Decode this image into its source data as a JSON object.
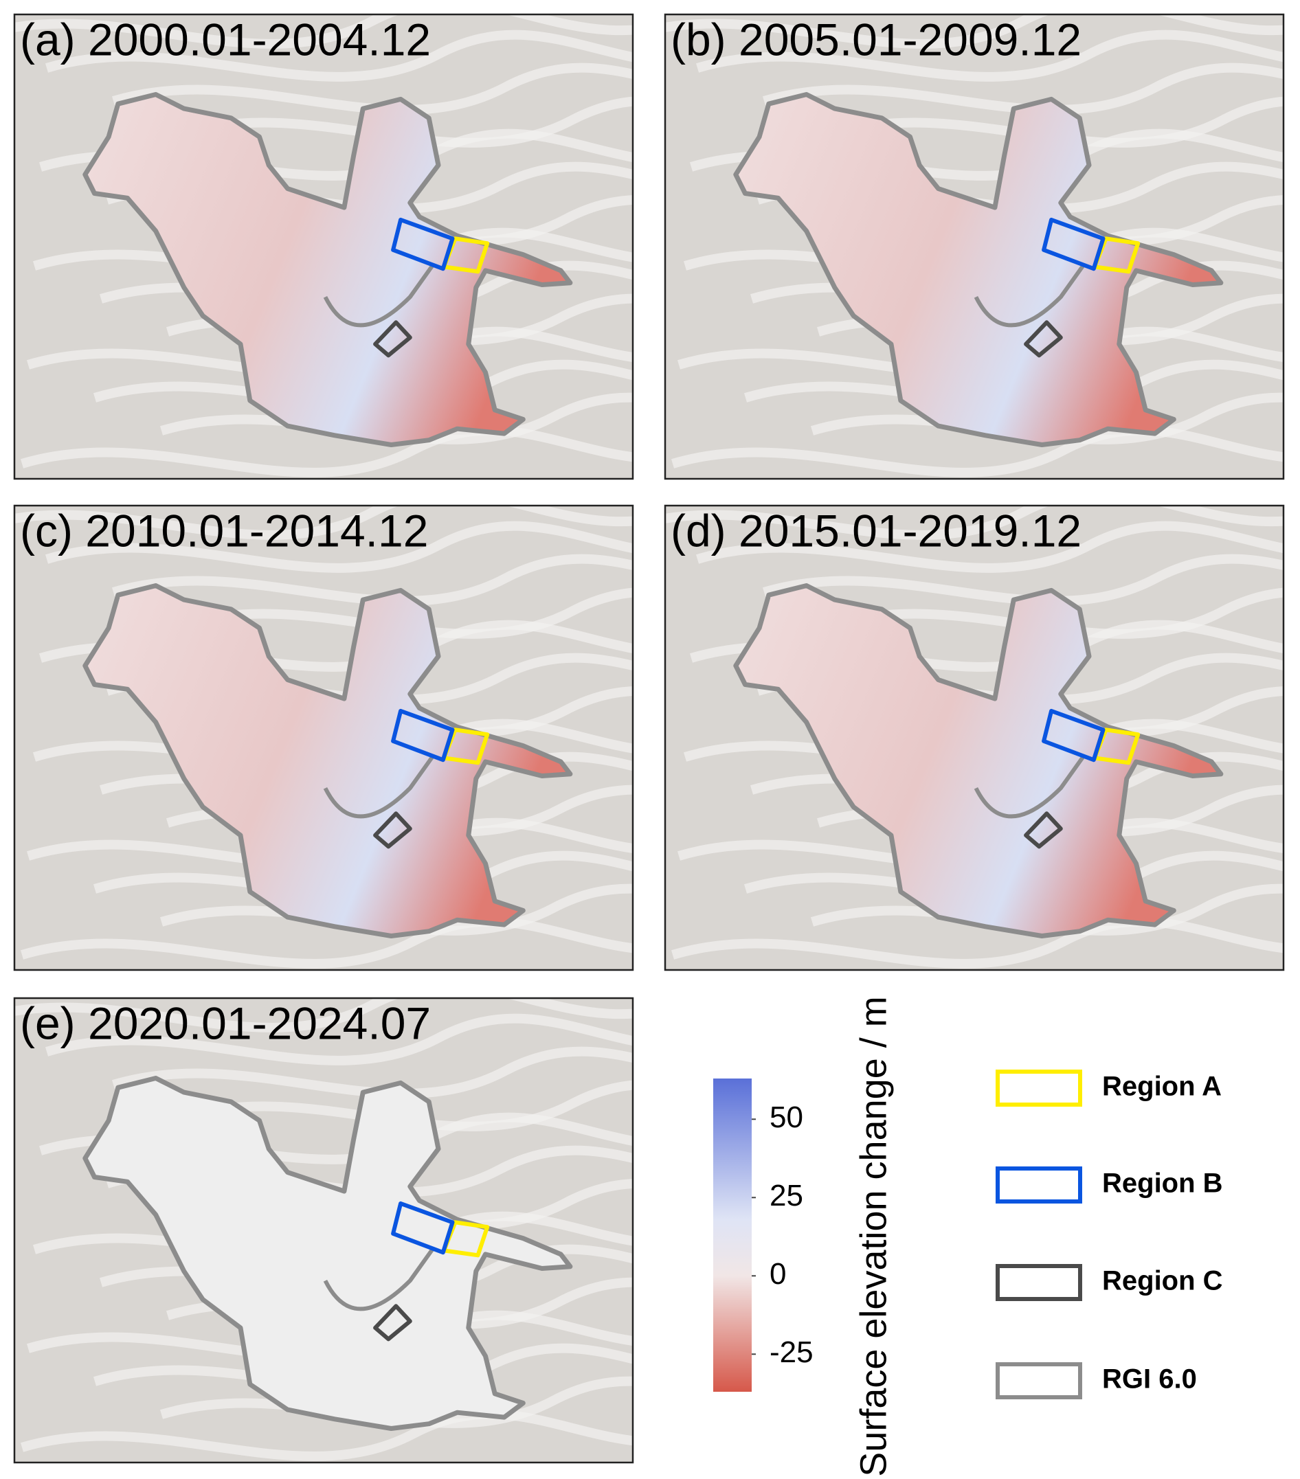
{
  "panels": [
    {
      "label": "(a) 2000.01-2004.12"
    },
    {
      "label": "(b) 2005.01-2009.12"
    },
    {
      "label": "(c) 2010.01-2014.12"
    },
    {
      "label": "(d) 2015.01-2019.12"
    },
    {
      "label": "(e) 2020.01-2024.07"
    }
  ],
  "colorbar": {
    "label": "Surface elevation change / m",
    "range": [
      -37,
      63
    ],
    "ticks": [
      50,
      25,
      0,
      -25
    ]
  },
  "legend": [
    {
      "label": "Region A",
      "color": "#ffee00"
    },
    {
      "label": "Region B",
      "color": "#0a55e0"
    },
    {
      "label": "Region C",
      "color": "#4a4a4a"
    },
    {
      "label": "RGI 6.0",
      "color": "#8c8c8c"
    }
  ]
}
